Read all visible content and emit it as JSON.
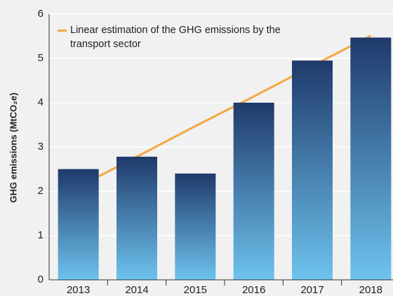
{
  "chart_data": {
    "type": "bar",
    "ylabel": "GHG emissions (MtCO₂e)",
    "categories": [
      "2013",
      "2014",
      "2015",
      "2016",
      "2017",
      "2018"
    ],
    "series": [
      {
        "name": "GHG emissions",
        "type": "bar",
        "color": "#1f3a6b",
        "color2": "#6ec3ee",
        "values": [
          2.5,
          2.78,
          2.4,
          4.0,
          4.95,
          5.47
        ]
      },
      {
        "name": "Linear estimation of the GHG emissions by the transport sector",
        "type": "line",
        "color": "#f5a742",
        "values": [
          2.1,
          2.78,
          3.47,
          4.14,
          4.83,
          5.51
        ]
      }
    ],
    "ylim": [
      0,
      6
    ],
    "yticks": [
      0,
      1,
      2,
      3,
      4,
      5,
      6
    ],
    "grid": true,
    "legend": "top-left"
  }
}
